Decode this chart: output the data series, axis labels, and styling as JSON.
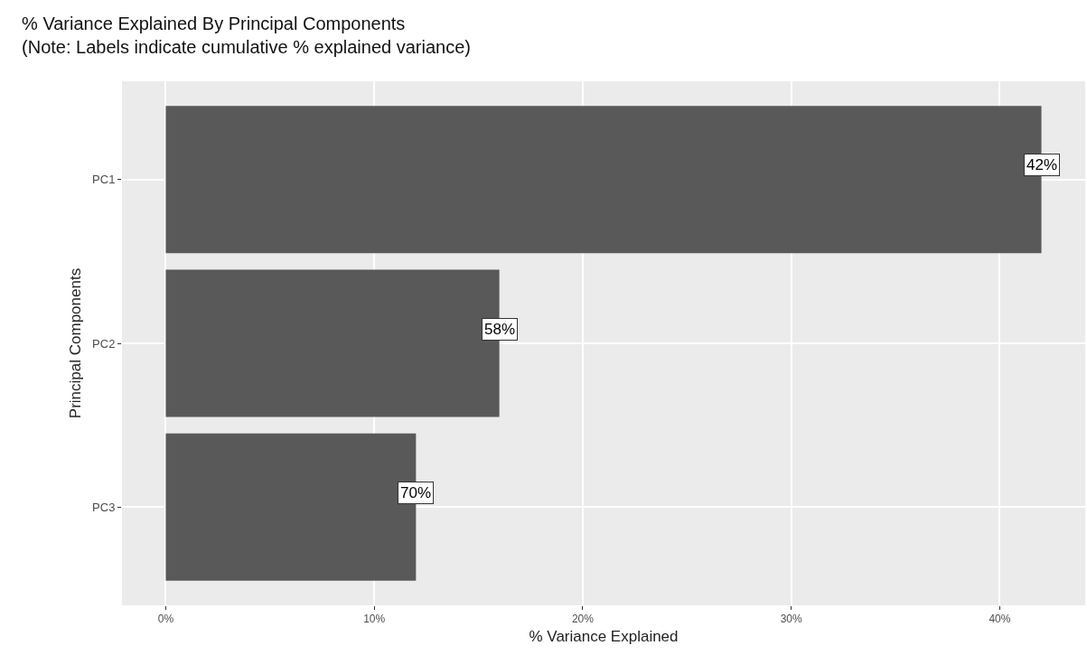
{
  "chart_data": {
    "type": "bar",
    "orientation": "horizontal",
    "title": "% Variance Explained By Principal Components",
    "subtitle": "(Note: Labels indicate cumulative % explained variance)",
    "xlabel": "% Variance Explained",
    "ylabel": "Principal Components",
    "categories": [
      "PC1",
      "PC2",
      "PC3"
    ],
    "values": [
      42,
      16,
      12
    ],
    "annotations": [
      {
        "text": "42%",
        "x": 42,
        "y": "PC1"
      },
      {
        "text": "58%",
        "x": 16,
        "y": "PC2"
      },
      {
        "text": "70%",
        "x": 12,
        "y": "PC3"
      }
    ],
    "color": "#595959",
    "xlim": [
      -2.1,
      44.1
    ],
    "xticks": [
      {
        "value": 0,
        "label": "0%"
      },
      {
        "value": 10,
        "label": "10%"
      },
      {
        "value": 20,
        "label": "20%"
      },
      {
        "value": 30,
        "label": "30%"
      },
      {
        "value": 40,
        "label": "40%"
      }
    ],
    "grid": true,
    "legend": false
  }
}
